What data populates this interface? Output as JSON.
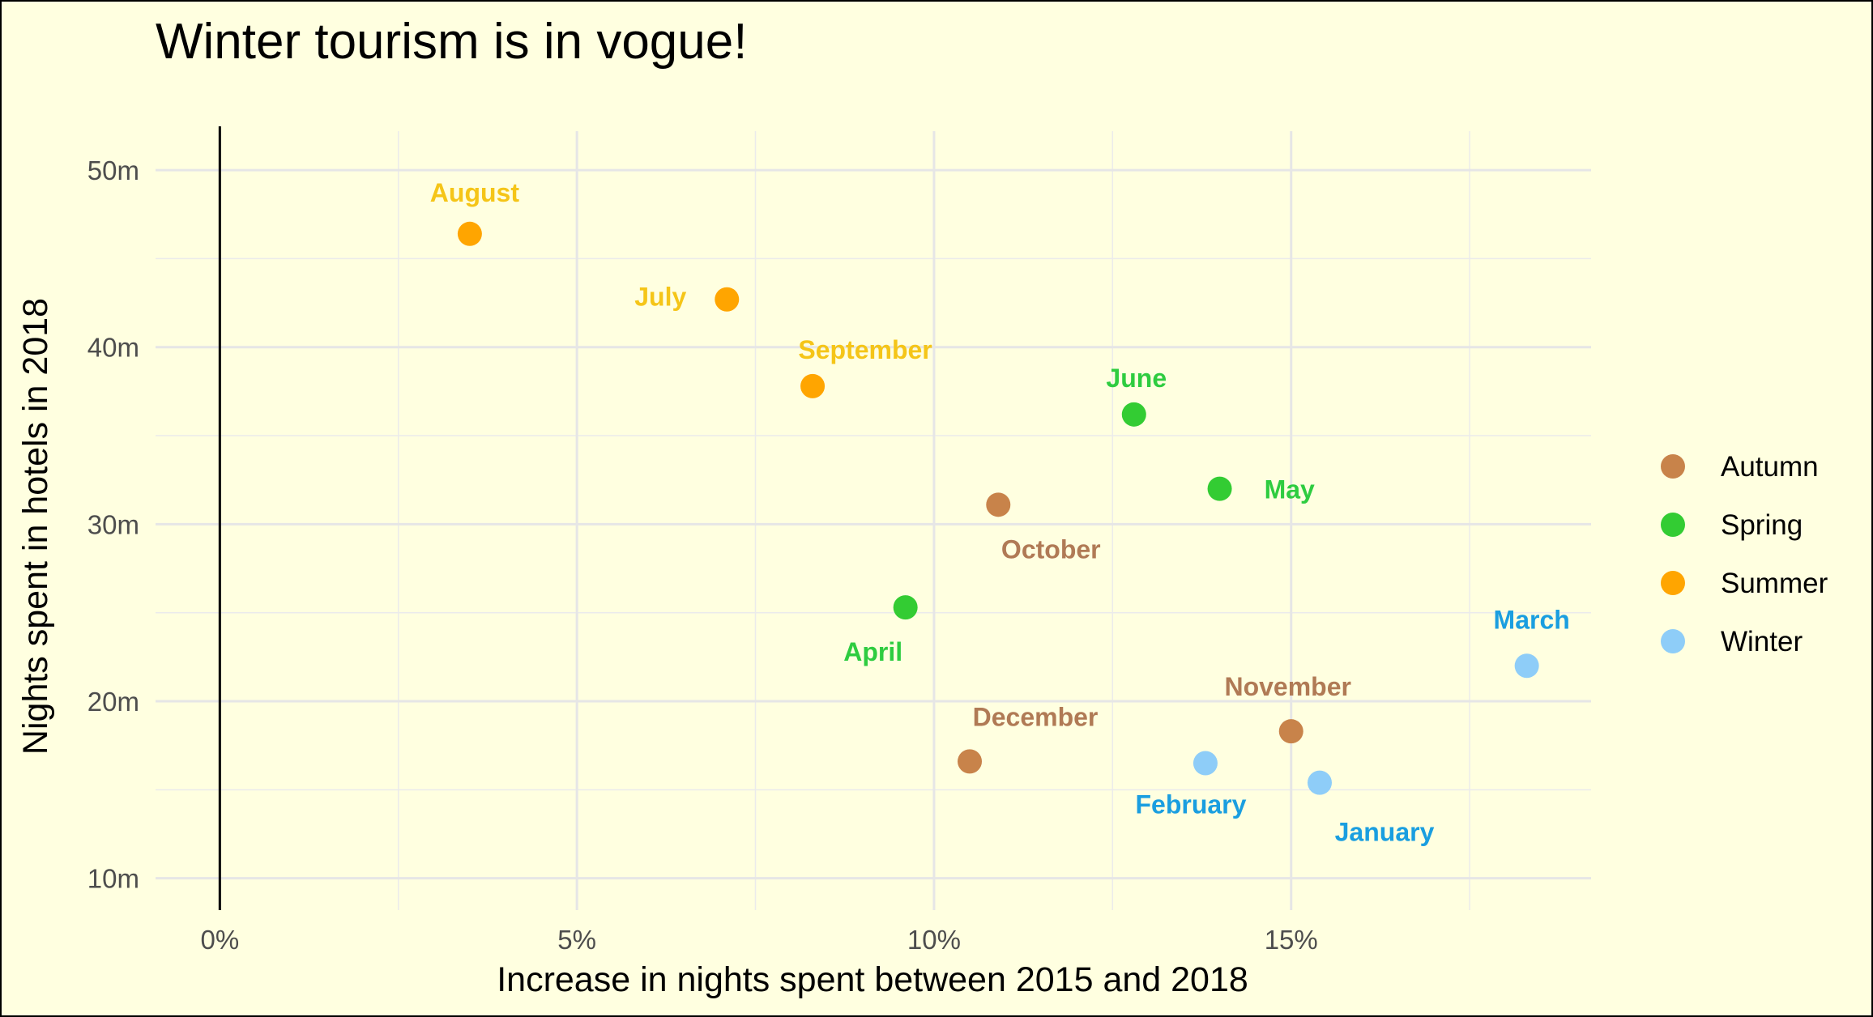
{
  "chart_data": {
    "type": "scatter",
    "title": "Winter tourism is in vogue!",
    "xlabel": "Increase in nights spent between 2015 and 2018",
    "ylabel": "Nights spent in hotels in 2018",
    "xlim": [
      -0.9,
      19.2
    ],
    "ylim": [
      8.2,
      52.2
    ],
    "x_ticks": [
      0,
      5,
      10,
      15
    ],
    "x_tick_labels": [
      "0%",
      "5%",
      "10%",
      "15%"
    ],
    "y_ticks": [
      10,
      20,
      30,
      40,
      50
    ],
    "y_tick_labels": [
      "10m",
      "20m",
      "30m",
      "40m",
      "50m"
    ],
    "grid": true,
    "legend_position": "right",
    "legend": [
      {
        "name": "Autumn",
        "color": "#c8834a"
      },
      {
        "name": "Spring",
        "color": "#33cc33"
      },
      {
        "name": "Summer",
        "color": "#ffa500"
      },
      {
        "name": "Winter",
        "color": "#8ecdf8"
      }
    ],
    "label_colors": {
      "Autumn": "#b07a55",
      "Spring": "#2ecc40",
      "Summer": "#f5c518",
      "Winter": "#1a9ee0"
    },
    "points": [
      {
        "label": "August",
        "season": "Summer",
        "x": 3.5,
        "y": 46.4
      },
      {
        "label": "July",
        "season": "Summer",
        "x": 7.1,
        "y": 42.7
      },
      {
        "label": "September",
        "season": "Summer",
        "x": 8.3,
        "y": 37.8
      },
      {
        "label": "June",
        "season": "Spring",
        "x": 12.8,
        "y": 36.2
      },
      {
        "label": "May",
        "season": "Spring",
        "x": 14.0,
        "y": 32.0
      },
      {
        "label": "October",
        "season": "Autumn",
        "x": 10.9,
        "y": 31.1
      },
      {
        "label": "April",
        "season": "Spring",
        "x": 9.6,
        "y": 25.3
      },
      {
        "label": "March",
        "season": "Winter",
        "x": 18.3,
        "y": 22.0
      },
      {
        "label": "November",
        "season": "Autumn",
        "x": 15.0,
        "y": 18.3
      },
      {
        "label": "December",
        "season": "Autumn",
        "x": 10.5,
        "y": 16.6
      },
      {
        "label": "February",
        "season": "Winter",
        "x": 13.8,
        "y": 16.5
      },
      {
        "label": "January",
        "season": "Winter",
        "x": 15.4,
        "y": 15.4
      }
    ]
  }
}
